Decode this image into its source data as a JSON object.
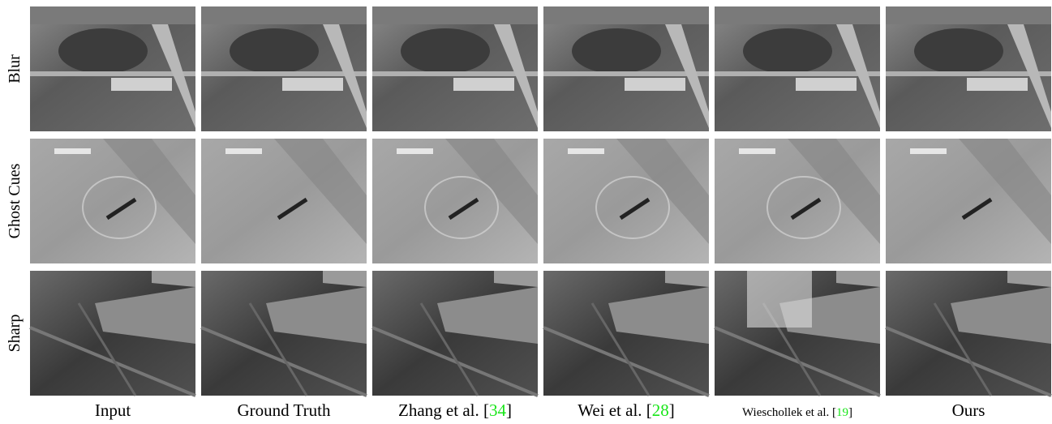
{
  "figure": {
    "rows": [
      "Blur",
      "Ghost Cues",
      "Sharp"
    ],
    "columns": [
      {
        "text": "Input"
      },
      {
        "text": "Ground Truth"
      },
      {
        "text": "Zhang et al. [",
        "ref": "34",
        "close": "]"
      },
      {
        "text": "Wei et al. [",
        "ref": "28",
        "close": "]"
      },
      {
        "text": "Wieschollek et al. [",
        "ref": "19",
        "close": "]"
      },
      {
        "text": "Ours"
      }
    ]
  }
}
